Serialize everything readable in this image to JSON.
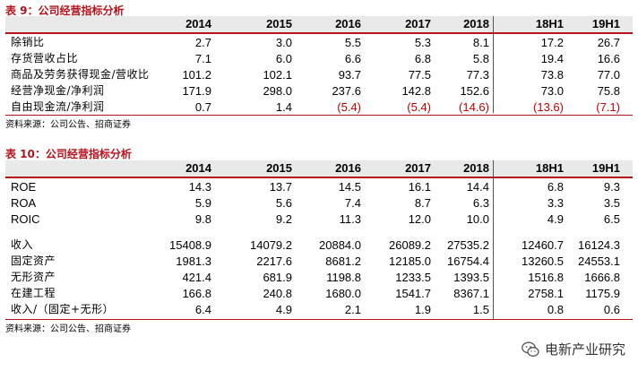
{
  "table9": {
    "title": "表 9：公司经营指标分析",
    "years": [
      "2014",
      "2015",
      "2016",
      "2017",
      "2018",
      "18H1",
      "19H1"
    ],
    "rows": [
      {
        "label": "除销比",
        "values": [
          "2.7",
          "3.0",
          "5.5",
          "5.3",
          "8.1",
          "17.2",
          "26.7"
        ],
        "neg": [
          false,
          false,
          false,
          false,
          false,
          false,
          false
        ]
      },
      {
        "label": "存货营收占比",
        "values": [
          "7.1",
          "6.0",
          "6.6",
          "6.8",
          "5.8",
          "19.4",
          "16.6"
        ],
        "neg": [
          false,
          false,
          false,
          false,
          false,
          false,
          false
        ]
      },
      {
        "label": "商品及劳务获得现金/营收比",
        "values": [
          "101.2",
          "102.1",
          "93.7",
          "77.5",
          "77.3",
          "73.8",
          "77.0"
        ],
        "neg": [
          false,
          false,
          false,
          false,
          false,
          false,
          false
        ]
      },
      {
        "label": "经营净现金/净利润",
        "values": [
          "171.9",
          "298.0",
          "237.6",
          "142.8",
          "152.6",
          "73.0",
          "75.8"
        ],
        "neg": [
          false,
          false,
          false,
          false,
          false,
          false,
          false
        ]
      },
      {
        "label": "自由现金流/净利润",
        "values": [
          "0.7",
          "1.4",
          "(5.4)",
          "(5.4)",
          "(14.6)",
          "(13.6)",
          "(7.1)"
        ],
        "neg": [
          false,
          false,
          true,
          true,
          true,
          true,
          true
        ]
      }
    ],
    "source": "资料来源：公司公告、招商证券"
  },
  "table10": {
    "title": "表 10：公司经营指标分析",
    "years": [
      "2014",
      "2015",
      "2016",
      "2017",
      "2018",
      "18H1",
      "19H1"
    ],
    "rows_a": [
      {
        "label": "ROE",
        "values": [
          "14.3",
          "13.7",
          "14.5",
          "16.1",
          "14.4",
          "6.8",
          "9.3"
        ]
      },
      {
        "label": "ROA",
        "values": [
          "5.9",
          "5.6",
          "7.4",
          "8.7",
          "6.3",
          "3.3",
          "3.5"
        ]
      },
      {
        "label": "ROIC",
        "values": [
          "9.8",
          "9.2",
          "11.3",
          "12.0",
          "10.0",
          "4.9",
          "6.5"
        ]
      }
    ],
    "rows_b": [
      {
        "label": "收入",
        "values": [
          "15408.9",
          "14079.2",
          "20884.0",
          "26089.2",
          "27535.2",
          "12460.7",
          "16124.3"
        ]
      },
      {
        "label": "固定资产",
        "values": [
          "1981.3",
          "2217.6",
          "8681.2",
          "12185.0",
          "16754.4",
          "13260.5",
          "24553.1"
        ]
      },
      {
        "label": "无形资产",
        "values": [
          "421.4",
          "681.9",
          "1198.8",
          "1233.5",
          "1393.5",
          "1516.8",
          "1666.8"
        ]
      },
      {
        "label": "在建工程",
        "values": [
          "166.8",
          "240.8",
          "1680.0",
          "1541.7",
          "8367.1",
          "2758.1",
          "1175.9"
        ]
      },
      {
        "label": "收入/（固定+无形）",
        "values": [
          "6.4",
          "4.9",
          "2.1",
          "1.9",
          "1.5",
          "0.8",
          "0.6"
        ]
      }
    ],
    "source": "资料来源：公司公告、招商证券"
  },
  "watermark": {
    "text": "电新产业研究",
    "icon": "wechat-icon"
  },
  "colors": {
    "title": "#b5121b",
    "rule": "#b5121b",
    "header_bg": "#e9e9e9",
    "negative": "#c00000"
  }
}
